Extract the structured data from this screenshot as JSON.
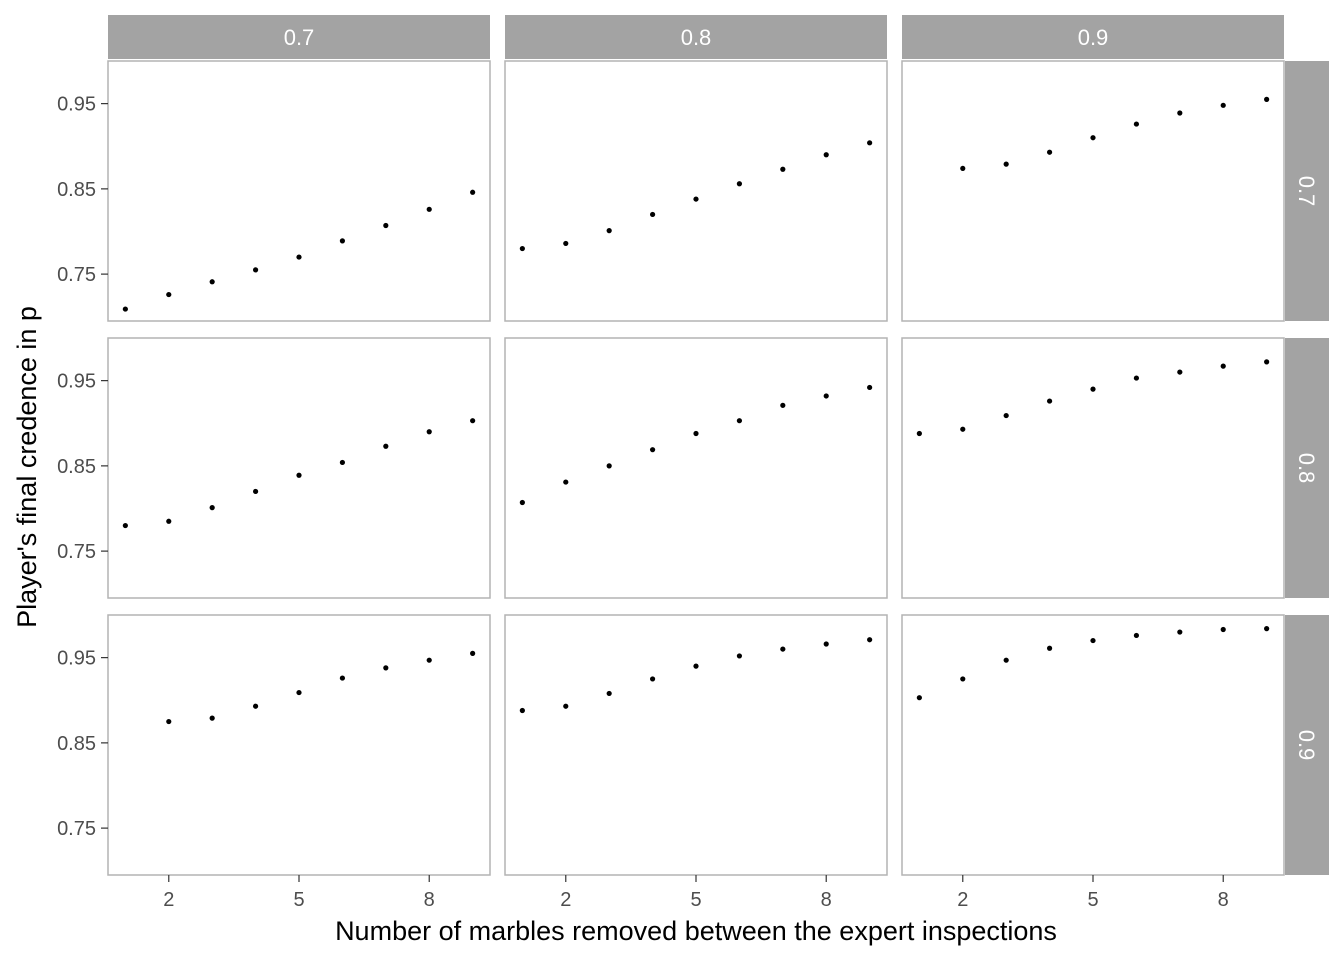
{
  "chart_data": {
    "type": "scatter",
    "xlabel": "Number of marbles removed between the expert inspections",
    "ylabel": "Player's final credence in p",
    "x_ticks": [
      2,
      5,
      8
    ],
    "y_ticks": [
      0.75,
      0.85,
      0.95
    ],
    "xlim": [
      0.6,
      9.4
    ],
    "ylim": [
      0.695,
      1.0
    ],
    "column_strips": [
      "0.7",
      "0.8",
      "0.9"
    ],
    "row_strips": [
      "0.7",
      "0.8",
      "0.9"
    ],
    "colors": {
      "strip": "#a3a3a3",
      "strip_text": "#ffffff",
      "panel_border": "#b3b3b3",
      "point": "#000000",
      "axis_text": "#4d4d4d",
      "title_text": "#000000"
    },
    "panels": [
      {
        "row": "0.7",
        "col": "0.7",
        "x": [
          1,
          2,
          3,
          4,
          5,
          6,
          7,
          8,
          9
        ],
        "y": [
          0.709,
          0.726,
          0.741,
          0.755,
          0.77,
          0.789,
          0.807,
          0.826,
          0.846
        ]
      },
      {
        "row": "0.7",
        "col": "0.8",
        "x": [
          1,
          2,
          3,
          4,
          5,
          6,
          7,
          8,
          9
        ],
        "y": [
          0.78,
          0.786,
          0.801,
          0.82,
          0.838,
          0.856,
          0.873,
          0.89,
          0.904
        ]
      },
      {
        "row": "0.7",
        "col": "0.9",
        "x": [
          2,
          3,
          4,
          5,
          6,
          7,
          8,
          9
        ],
        "y": [
          0.874,
          0.879,
          0.893,
          0.91,
          0.926,
          0.939,
          0.948,
          0.955
        ]
      },
      {
        "row": "0.8",
        "col": "0.7",
        "x": [
          1,
          2,
          3,
          4,
          5,
          6,
          7,
          8,
          9
        ],
        "y": [
          0.78,
          0.785,
          0.801,
          0.82,
          0.839,
          0.854,
          0.873,
          0.89,
          0.903
        ]
      },
      {
        "row": "0.8",
        "col": "0.8",
        "x": [
          1,
          2,
          3,
          4,
          5,
          6,
          7,
          8,
          9
        ],
        "y": [
          0.807,
          0.831,
          0.85,
          0.869,
          0.888,
          0.903,
          0.921,
          0.932,
          0.942
        ]
      },
      {
        "row": "0.8",
        "col": "0.9",
        "x": [
          1,
          2,
          3,
          4,
          5,
          6,
          7,
          8,
          9
        ],
        "y": [
          0.888,
          0.893,
          0.909,
          0.926,
          0.94,
          0.953,
          0.96,
          0.967,
          0.972
        ]
      },
      {
        "row": "0.9",
        "col": "0.7",
        "x": [
          2,
          3,
          4,
          5,
          6,
          7,
          8,
          9
        ],
        "y": [
          0.875,
          0.879,
          0.893,
          0.909,
          0.926,
          0.938,
          0.947,
          0.955
        ]
      },
      {
        "row": "0.9",
        "col": "0.8",
        "x": [
          1,
          2,
          3,
          4,
          5,
          6,
          7,
          8,
          9
        ],
        "y": [
          0.888,
          0.893,
          0.908,
          0.925,
          0.94,
          0.952,
          0.96,
          0.966,
          0.971
        ]
      },
      {
        "row": "0.9",
        "col": "0.9",
        "x": [
          1,
          2,
          3,
          4,
          5,
          6,
          7,
          8,
          9
        ],
        "y": [
          0.903,
          0.925,
          0.947,
          0.961,
          0.97,
          0.976,
          0.98,
          0.983,
          0.984
        ]
      }
    ]
  }
}
